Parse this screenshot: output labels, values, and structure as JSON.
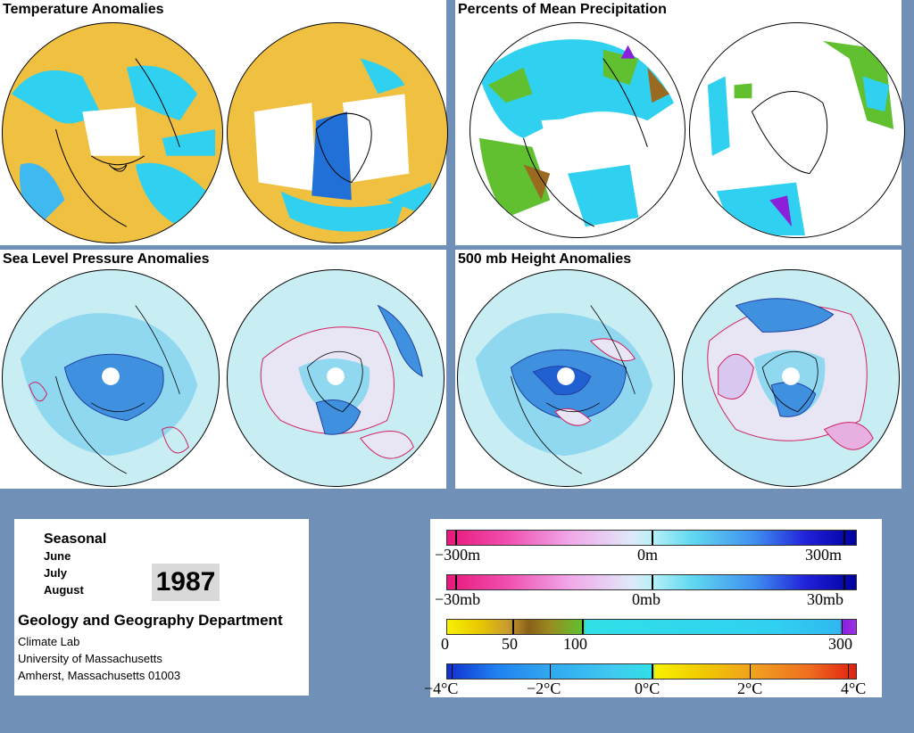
{
  "panels": {
    "temperature": {
      "title": "Temperature Anomalies"
    },
    "precipitation": {
      "title": "Percents of Mean Precipitation"
    },
    "slp": {
      "title": "Sea Level Pressure Anomalies"
    },
    "height500": {
      "title": "500 mb Height Anomalies"
    }
  },
  "info": {
    "season": "Seasonal",
    "months": [
      "June",
      "July",
      "August"
    ],
    "year": "1987",
    "department": "Geology and Geography Department",
    "lines": [
      "Climate Lab",
      "University of Massachusetts",
      "Amherst, Massachusetts 01003"
    ]
  },
  "legend": {
    "height": {
      "left": "−300m",
      "mid": "0m",
      "right": "300m"
    },
    "pressure": {
      "left": "−30mb",
      "mid": "0mb",
      "right": "30mb"
    },
    "precip": {
      "a": "0",
      "b": "50",
      "c": "100",
      "d": "300"
    },
    "temp": {
      "a": "−4°C",
      "b": "−2°C",
      "c": "0°C",
      "d": "2°C",
      "e": "4°C"
    }
  },
  "colors": {
    "background": "#7090b8",
    "warm": "#f0b030",
    "cool": "#30d8f0",
    "positive_contour": "#d02060",
    "negative_contour": "#2040a0",
    "pale": "#c8eef4"
  }
}
